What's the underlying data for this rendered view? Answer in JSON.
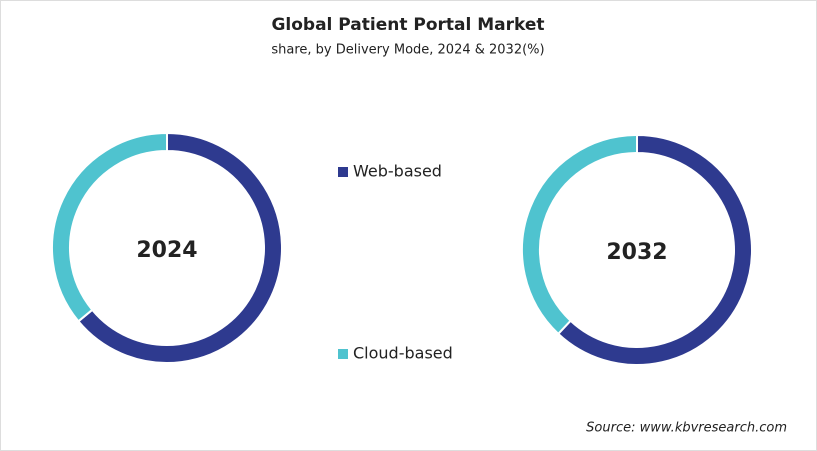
{
  "chart_data": [
    {
      "type": "pie",
      "title": "Global Patient Portal Market",
      "subtitle": "share, by Delivery Mode, 2024 & 2032(%)",
      "center_label": "2024",
      "categories": [
        "Web-based",
        "Cloud-based"
      ],
      "values": [
        64,
        36
      ],
      "colors": [
        "#2e3a8f",
        "#4fc3cf"
      ],
      "source": "Source: www.kbvresearch.com"
    },
    {
      "type": "pie",
      "center_label": "2032",
      "categories": [
        "Web-based",
        "Cloud-based"
      ],
      "values": [
        62,
        38
      ],
      "colors": [
        "#2e3a8f",
        "#4fc3cf"
      ]
    }
  ]
}
